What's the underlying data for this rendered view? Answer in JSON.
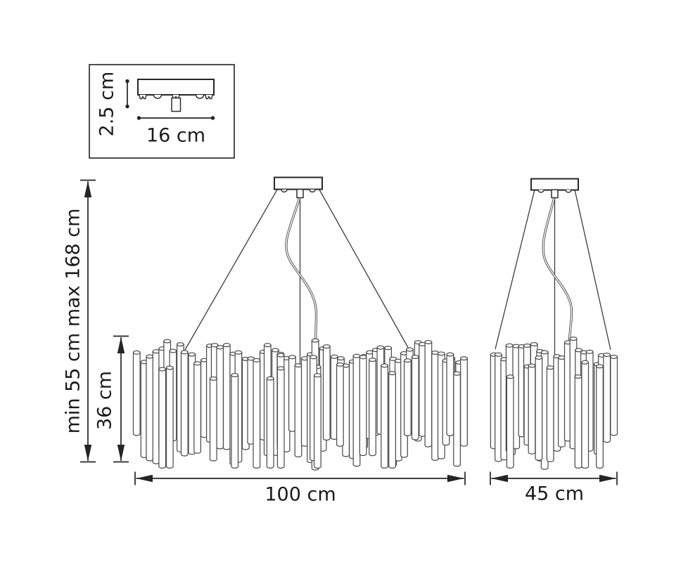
{
  "inset": {
    "height_label": "2.5 cm",
    "width_label": "16 cm"
  },
  "left_dimensions": {
    "suspension_range_label": "min 55 cm max 168 cm",
    "body_height_label": "36 cm"
  },
  "bottom_dimensions": {
    "large_width_label": "100 cm",
    "small_width_label": "45 cm"
  },
  "colors": {
    "background": "#ffffff",
    "line": "#2b2b2b",
    "tube_line": "#4d4d4d",
    "text": "#1b1b1b"
  }
}
